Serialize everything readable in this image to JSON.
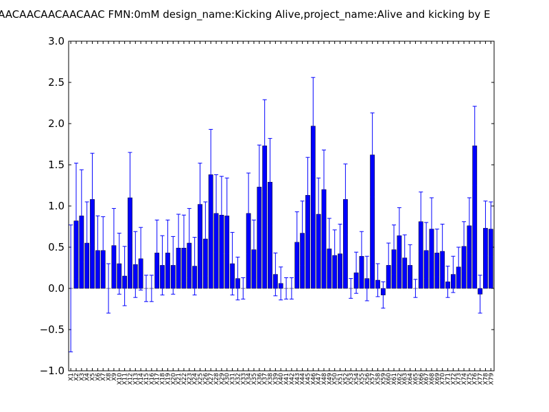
{
  "chart_data": {
    "type": "bar",
    "title": "AACAACAACAACAAC  FMN:0mM  design_name:Kicking Alive,project_name:Alive and kicking by E",
    "categories": [
      "X1",
      "X2",
      "X3",
      "X4",
      "X5",
      "X6",
      "X7",
      "X8",
      "X9",
      "X10",
      "X11",
      "X12",
      "X13",
      "X14",
      "X15",
      "X16",
      "X17",
      "X18",
      "X19",
      "X20",
      "X21",
      "X22",
      "X23",
      "X24",
      "X25",
      "X26",
      "X27",
      "X28",
      "X29",
      "X30",
      "X31",
      "X32",
      "X33",
      "X34",
      "X35",
      "X36",
      "X37",
      "X38",
      "X39",
      "X40",
      "X41",
      "X42",
      "X43",
      "X44",
      "X45",
      "X46",
      "X47",
      "X48",
      "X49",
      "X50",
      "X51",
      "X52",
      "X53",
      "X54",
      "X55",
      "X56",
      "X57",
      "X58",
      "X59",
      "X60",
      "X61",
      "X62",
      "X63",
      "X64",
      "X65",
      "X66",
      "X67",
      "X68",
      "X69",
      "X70",
      "X71",
      "X72",
      "X73",
      "X74",
      "X75",
      "X76",
      "X77",
      "X78",
      "X79"
    ],
    "values": [
      0,
      0.82,
      0.88,
      0.55,
      1.08,
      0.46,
      0.46,
      0,
      0.52,
      0.3,
      0.15,
      1.1,
      0.29,
      0.36,
      0,
      0,
      0.43,
      0.28,
      0.43,
      0.28,
      0.49,
      0.49,
      0.55,
      0.27,
      1.02,
      0.6,
      1.38,
      0.91,
      0.89,
      0.88,
      0.3,
      0.12,
      0,
      0.91,
      0.47,
      1.23,
      1.73,
      1.29,
      0.17,
      0.06,
      0,
      0,
      0.56,
      0.67,
      1.13,
      1.97,
      0.9,
      1.2,
      0.48,
      0.4,
      0.42,
      1.08,
      0,
      0.19,
      0.39,
      0.12,
      1.62,
      0.1,
      -0.08,
      0.28,
      0.47,
      0.64,
      0.37,
      0.28,
      0,
      0.81,
      0.46,
      0.72,
      0.43,
      0.45,
      0.08,
      0.17,
      0.26,
      0.51,
      0.76,
      1.73,
      -0.07,
      0.73,
      0.72
    ],
    "errors": [
      0.77,
      0.7,
      0.56,
      0.5,
      0.56,
      0.42,
      0.41,
      0.3,
      0.45,
      0.37,
      0.36,
      0.55,
      0.4,
      0.38,
      0.16,
      0.16,
      0.4,
      0.36,
      0.4,
      0.35,
      0.41,
      0.4,
      0.42,
      0.35,
      0.5,
      0.45,
      0.55,
      0.47,
      0.47,
      0.46,
      0.38,
      0.26,
      0.13,
      0.49,
      0.36,
      0.51,
      0.56,
      0.53,
      0.26,
      0.2,
      0.13,
      0.13,
      0.37,
      0.39,
      0.46,
      0.59,
      0.44,
      0.48,
      0.37,
      0.31,
      0.36,
      0.43,
      0.12,
      0.25,
      0.3,
      0.27,
      0.51,
      0.2,
      0.16,
      0.27,
      0.3,
      0.34,
      0.28,
      0.25,
      0.11,
      0.36,
      0.34,
      0.38,
      0.29,
      0.33,
      0.19,
      0.22,
      0.24,
      0.3,
      0.34,
      0.48,
      0.23,
      0.33,
      0.33
    ],
    "color": "#0000ff",
    "error_color": "#0000ff",
    "ylim": [
      -1.0,
      3.0
    ],
    "yticks": [
      {
        "value": -1.0,
        "label": "−1.0"
      },
      {
        "value": -0.5,
        "label": "−0.5"
      },
      {
        "value": 0.0,
        "label": "0.0"
      },
      0.5,
      {
        "value": 1.0,
        "label": "1.0"
      },
      1.5,
      {
        "value": 2.0,
        "label": "2.0"
      },
      2.5,
      {
        "value": 3.0,
        "label": "3.0"
      }
    ],
    "grid": false
  }
}
